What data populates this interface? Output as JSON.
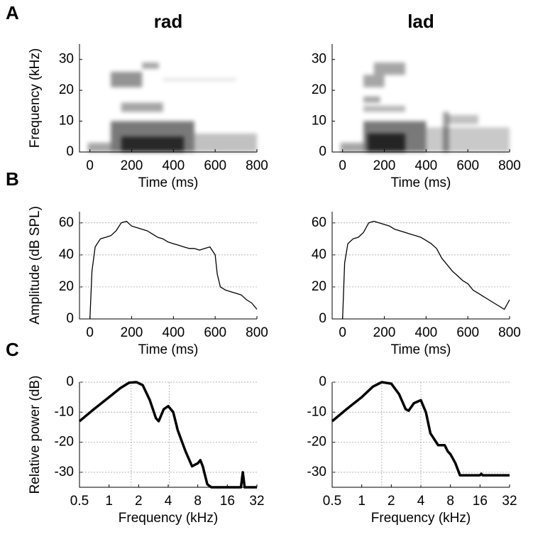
{
  "figure": {
    "panels": [
      "A",
      "B",
      "C"
    ]
  },
  "chart_data": [
    {
      "type": "spectrogram",
      "title": "rad",
      "xlabel": "Time (ms)",
      "ylabel": "Frequency (kHz)",
      "xlim": [
        -50,
        800
      ],
      "xticks": [
        0,
        200,
        400,
        600,
        800
      ],
      "ylim": [
        0,
        35
      ],
      "yticks": [
        0,
        10,
        20,
        30
      ],
      "regions": [
        {
          "t": [
            -10,
            100
          ],
          "f": [
            0,
            3
          ],
          "level": 0.5
        },
        {
          "t": [
            100,
            500
          ],
          "f": [
            0,
            10
          ],
          "level": 0.75
        },
        {
          "t": [
            150,
            450
          ],
          "f": [
            0,
            5
          ],
          "level": 0.95
        },
        {
          "t": [
            500,
            800
          ],
          "f": [
            0,
            6
          ],
          "level": 0.35
        },
        {
          "t": [
            150,
            350
          ],
          "f": [
            13,
            16
          ],
          "level": 0.5
        },
        {
          "t": [
            100,
            250
          ],
          "f": [
            21,
            26
          ],
          "level": 0.6
        },
        {
          "t": [
            250,
            330
          ],
          "f": [
            27,
            29
          ],
          "level": 0.5
        },
        {
          "t": [
            350,
            700
          ],
          "f": [
            23,
            24
          ],
          "level": 0.15
        }
      ]
    },
    {
      "type": "spectrogram",
      "title": "lad",
      "xlabel": "Time (ms)",
      "xlim": [
        -50,
        800
      ],
      "xticks": [
        0,
        200,
        400,
        600,
        800
      ],
      "ylim": [
        0,
        35
      ],
      "yticks": [
        0,
        10,
        20,
        30
      ],
      "regions": [
        {
          "t": [
            -10,
            100
          ],
          "f": [
            0,
            3
          ],
          "level": 0.5
        },
        {
          "t": [
            100,
            400
          ],
          "f": [
            0,
            10
          ],
          "level": 0.75
        },
        {
          "t": [
            120,
            300
          ],
          "f": [
            0,
            6
          ],
          "level": 1.0
        },
        {
          "t": [
            400,
            800
          ],
          "f": [
            0,
            8
          ],
          "level": 0.3
        },
        {
          "t": [
            480,
            510
          ],
          "f": [
            0,
            13
          ],
          "level": 0.5
        },
        {
          "t": [
            500,
            650
          ],
          "f": [
            9,
            12
          ],
          "level": 0.35
        },
        {
          "t": [
            100,
            180
          ],
          "f": [
            16,
            18
          ],
          "level": 0.5
        },
        {
          "t": [
            100,
            300
          ],
          "f": [
            13,
            15
          ],
          "level": 0.4
        },
        {
          "t": [
            100,
            200
          ],
          "f": [
            21,
            25
          ],
          "level": 0.5
        },
        {
          "t": [
            150,
            300
          ],
          "f": [
            25,
            29
          ],
          "level": 0.5
        }
      ]
    },
    {
      "type": "line",
      "xlabel": "Time (ms)",
      "ylabel": "Amplitude (dB SPL)",
      "grid": true,
      "color": "#000000",
      "xlim": [
        -50,
        800
      ],
      "xticks": [
        0,
        200,
        400,
        600,
        800
      ],
      "ylim": [
        0,
        67
      ],
      "yticks": [
        0,
        20,
        40,
        60
      ],
      "x": [
        0,
        10,
        25,
        50,
        75,
        100,
        125,
        150,
        175,
        200,
        225,
        250,
        275,
        300,
        325,
        350,
        375,
        400,
        425,
        450,
        475,
        500,
        525,
        550,
        575,
        600,
        610,
        625,
        650,
        675,
        700,
        725,
        750,
        775,
        800
      ],
      "values": [
        0,
        30,
        45,
        50,
        51,
        52,
        55,
        60,
        61,
        58,
        57,
        56,
        55,
        53,
        51,
        50,
        48,
        47,
        46,
        45,
        44,
        44,
        43,
        44,
        45,
        40,
        28,
        20,
        18,
        17,
        16,
        15,
        12,
        10,
        6
      ]
    },
    {
      "type": "line",
      "xlabel": "Time (ms)",
      "grid": true,
      "color": "#000000",
      "xlim": [
        -50,
        800
      ],
      "xticks": [
        0,
        200,
        400,
        600,
        800
      ],
      "ylim": [
        0,
        67
      ],
      "yticks": [
        0,
        20,
        40,
        60
      ],
      "x": [
        0,
        10,
        25,
        50,
        75,
        100,
        125,
        150,
        175,
        200,
        225,
        250,
        275,
        300,
        325,
        350,
        375,
        400,
        425,
        450,
        475,
        500,
        525,
        550,
        575,
        600,
        625,
        650,
        675,
        700,
        725,
        750,
        775,
        800
      ],
      "values": [
        0,
        35,
        47,
        50,
        51,
        54,
        60,
        61,
        60,
        59,
        58,
        56,
        55,
        54,
        53,
        52,
        51,
        49,
        47,
        44,
        38,
        34,
        30,
        27,
        24,
        22,
        18,
        16,
        14,
        12,
        10,
        8,
        6,
        12
      ]
    },
    {
      "type": "line",
      "xlabel": "Frequency (kHz)",
      "ylabel": "Relative power (dB)",
      "grid": true,
      "xlog": true,
      "color": "#000000",
      "xlim": [
        0.5,
        32
      ],
      "xticks": [
        0.5,
        1,
        2,
        4,
        8,
        16,
        32
      ],
      "ylim": [
        -35,
        0
      ],
      "yticks": [
        0,
        -10,
        -20,
        -30
      ],
      "peak_lines": [
        1.68,
        4.1
      ],
      "x": [
        0.5,
        0.7,
        1,
        1.3,
        1.6,
        1.9,
        2.2,
        2.6,
        3,
        3.2,
        3.6,
        4,
        4.5,
        5,
        6,
        7,
        8,
        8.5,
        9,
        10,
        11,
        16,
        22,
        23,
        24,
        32
      ],
      "values": [
        -13,
        -9,
        -5,
        -2,
        -0.2,
        0,
        -1,
        -6,
        -12,
        -13,
        -9,
        -8,
        -10,
        -16,
        -23,
        -28,
        -27,
        -26,
        -28,
        -34,
        -35,
        -35,
        -35,
        -30,
        -35,
        -35
      ]
    },
    {
      "type": "line",
      "xlabel": "Frequency (kHz)",
      "grid": true,
      "xlog": true,
      "color": "#000000",
      "xlim": [
        0.5,
        32
      ],
      "xticks": [
        0.5,
        1,
        2,
        4,
        8,
        16,
        32
      ],
      "ylim": [
        -35,
        0
      ],
      "yticks": [
        0,
        -10,
        -20,
        -30
      ],
      "peak_lines": [
        1.6,
        4
      ],
      "x": [
        0.5,
        0.7,
        1,
        1.3,
        1.6,
        2,
        2.4,
        2.8,
        3,
        3.4,
        4,
        4.5,
        5,
        6,
        7,
        7.5,
        8,
        9,
        10,
        16,
        16.5,
        17,
        25,
        32
      ],
      "values": [
        -13,
        -9,
        -5,
        -1.5,
        0,
        -0.5,
        -4,
        -9,
        -9.5,
        -7,
        -6,
        -10,
        -17,
        -21,
        -21,
        -23,
        -24,
        -27,
        -31,
        -31,
        -30.5,
        -31,
        -31,
        -31
      ]
    }
  ]
}
